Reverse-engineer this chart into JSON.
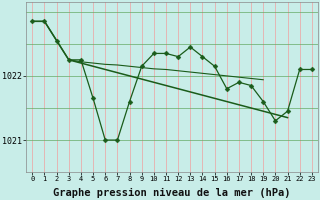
{
  "background_color": "#c8ede8",
  "grid_color_v": "#f0a0a0",
  "grid_color_h": "#66aa66",
  "line_color": "#1a5c1a",
  "xlabel": "Graphe pression niveau de la mer (hPa)",
  "xlabel_fontsize": 7.5,
  "ylim": [
    1020.5,
    1023.15
  ],
  "xlim": [
    -0.5,
    23.5
  ],
  "yticks": [
    1021,
    1022
  ],
  "xticks": [
    0,
    1,
    2,
    3,
    4,
    5,
    6,
    7,
    8,
    9,
    10,
    11,
    12,
    13,
    14,
    15,
    16,
    17,
    18,
    19,
    20,
    21,
    22,
    23
  ],
  "series_main": [
    1022.85,
    1022.85,
    1022.55,
    1022.25,
    1022.25,
    1021.65,
    1021.0,
    1021.0,
    1021.6,
    1022.15,
    1022.35,
    1022.35,
    1022.3,
    1022.45,
    1022.3,
    1022.15,
    1021.8,
    1021.9,
    1021.85,
    1021.6,
    1021.3,
    1021.45,
    1022.1,
    1022.1
  ],
  "series_trend": [
    1022.85,
    1022.85,
    1022.55,
    1022.25,
    1022.2,
    1022.15,
    1022.1,
    1022.05,
    1022.0,
    1021.95,
    1021.9,
    1021.85,
    1021.8,
    1021.75,
    1021.7,
    1021.65,
    1021.6,
    1021.55,
    1021.5,
    1021.45,
    1021.4,
    1021.35,
    1022.1,
    1022.1
  ],
  "series_flat_x": [
    3,
    4,
    5,
    6,
    7,
    8,
    9,
    10,
    11,
    12,
    13,
    14,
    15,
    16,
    17,
    18,
    19
  ],
  "series_flat_y": [
    1022.25,
    1022.22,
    1022.2,
    1022.18,
    1022.17,
    1022.15,
    1022.13,
    1022.11,
    1022.1,
    1022.08,
    1022.06,
    1022.04,
    1022.02,
    1022.0,
    1021.98,
    1021.96,
    1021.94
  ],
  "marker": "D",
  "markersize": 2.5,
  "lw_main": 0.9,
  "lw_trend": 1.1,
  "lw_flat": 0.8
}
